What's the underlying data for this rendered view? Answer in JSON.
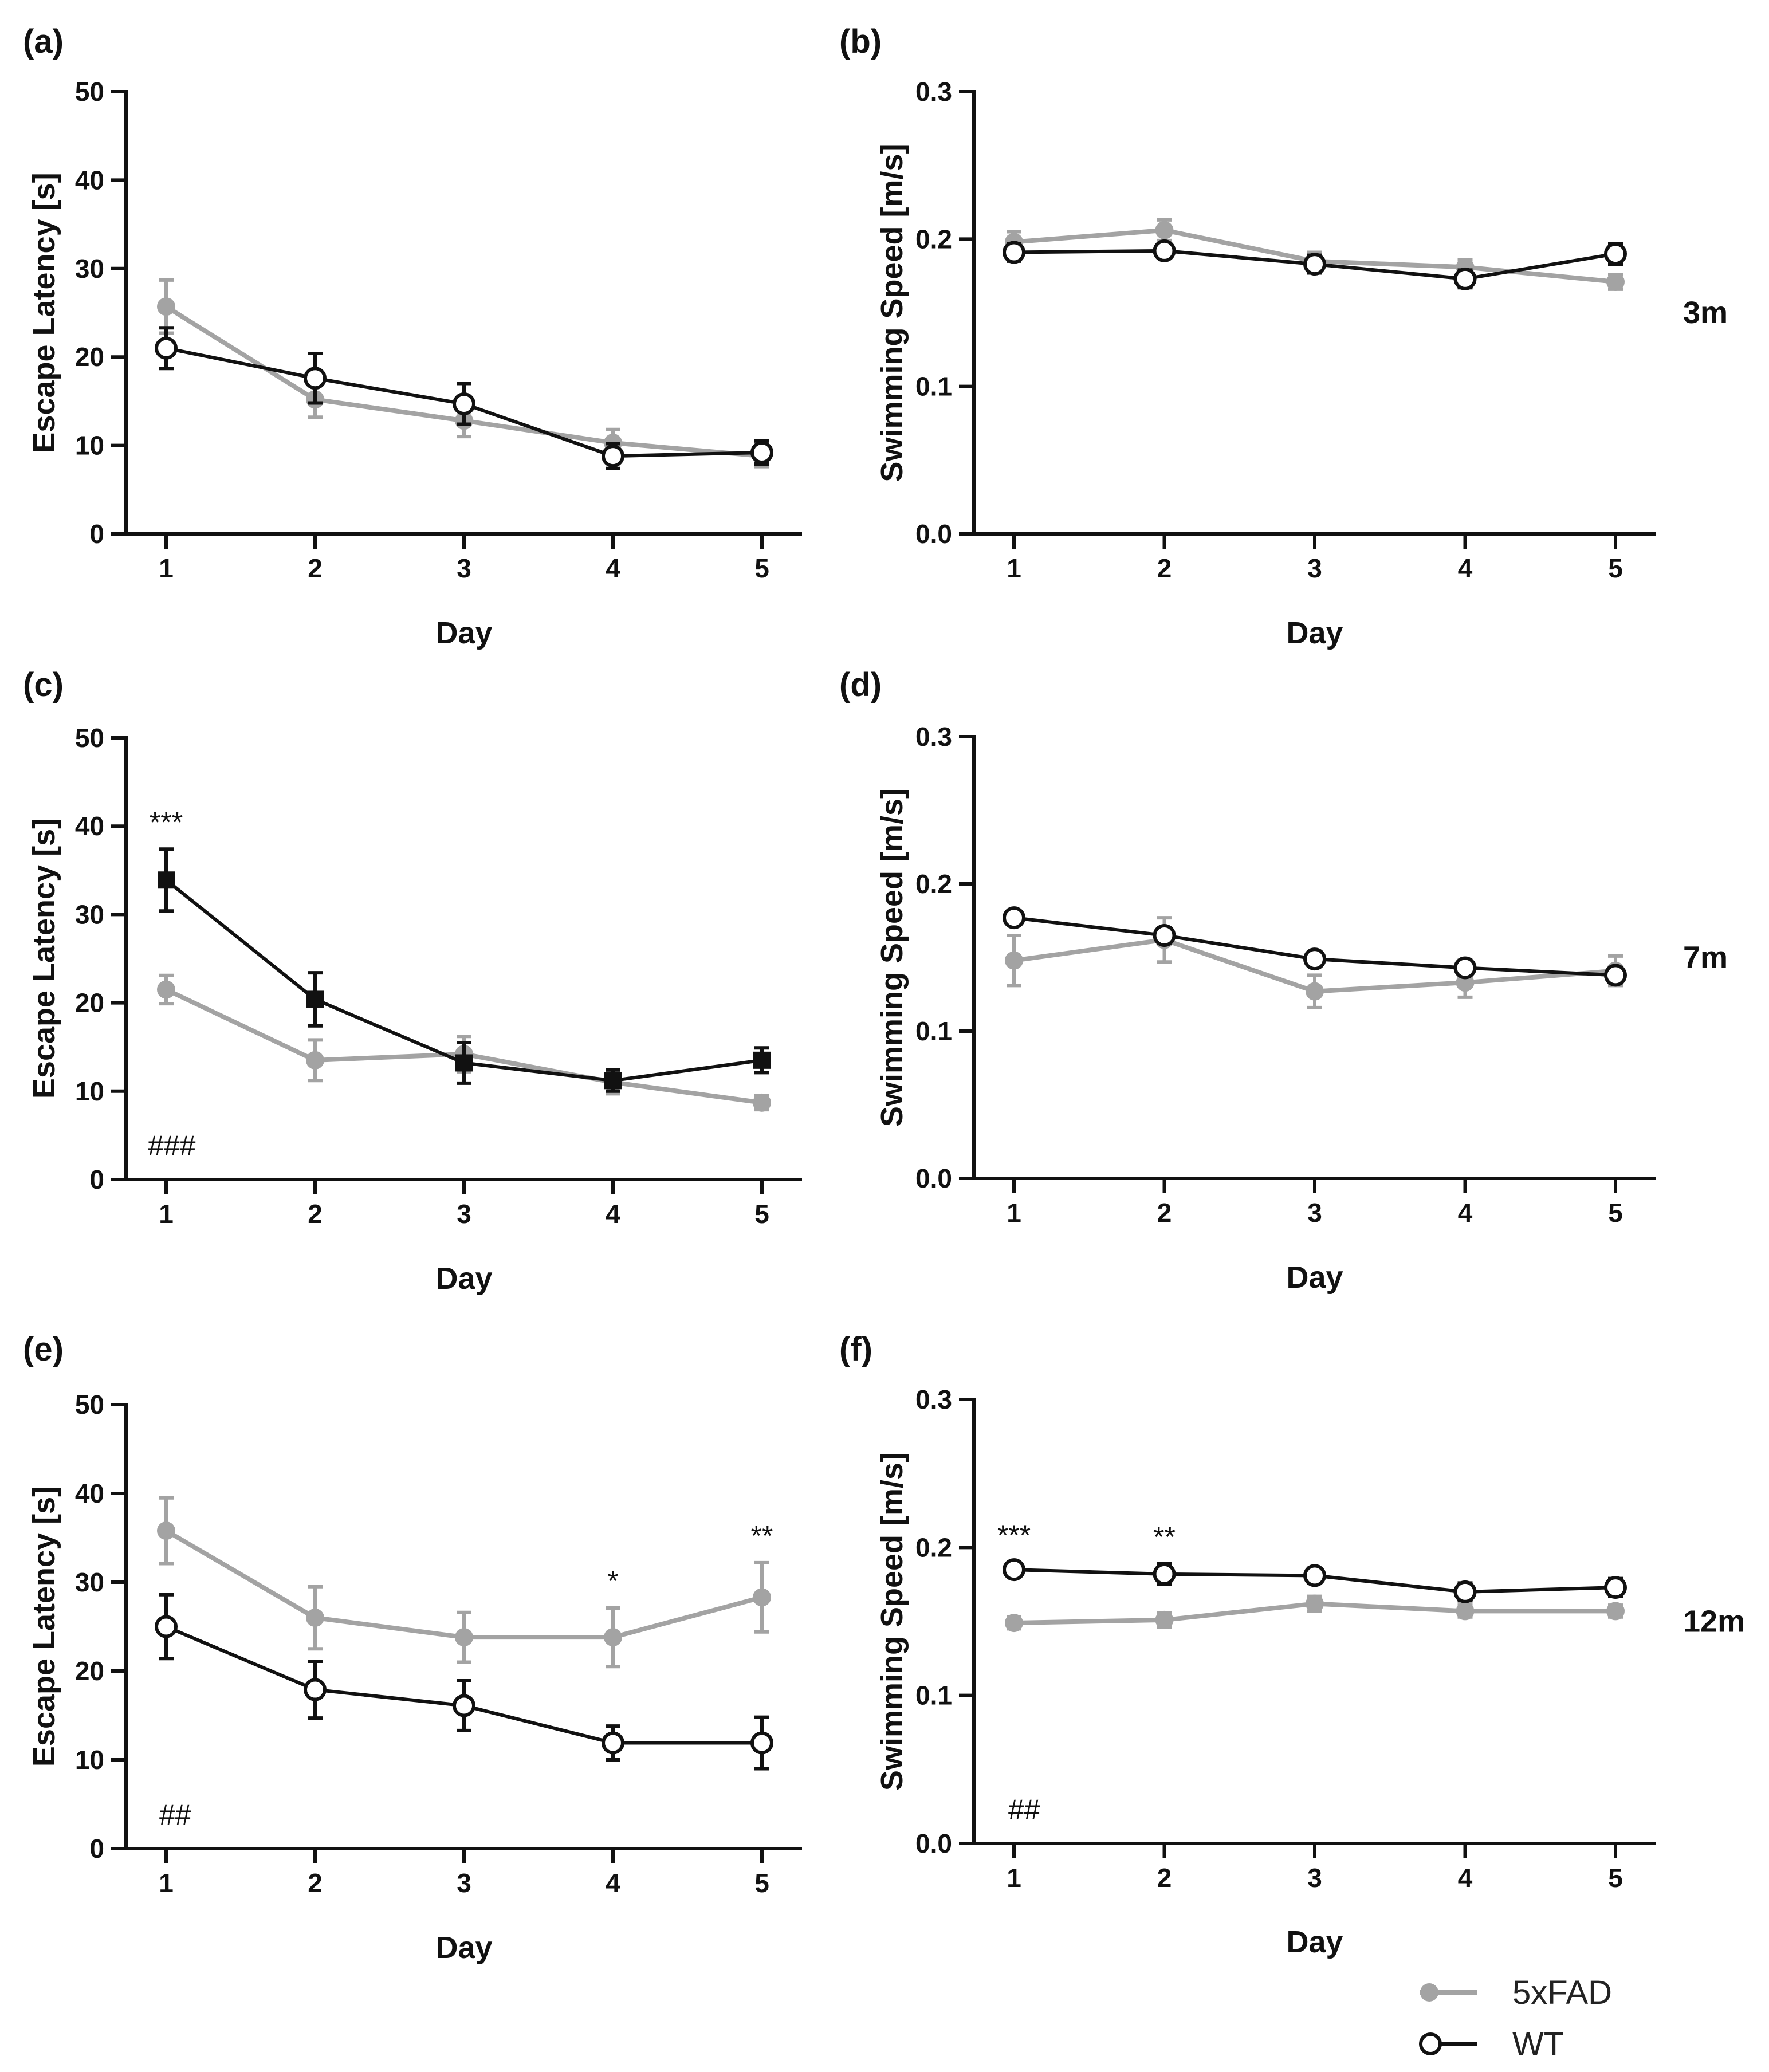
{
  "colors": {
    "fad": "#a3a3a3",
    "wt": "#111111",
    "axis": "#111111"
  },
  "legend": {
    "items": [
      {
        "label": "5xFAD",
        "series": "5xFAD",
        "marker": "filled-circle",
        "color": "#a3a3a3"
      },
      {
        "label": "WT",
        "series": "WT",
        "marker": "open-circle",
        "color": "#111111"
      }
    ]
  },
  "chart_data": [
    {
      "id": "a",
      "panel_label": "(a)",
      "type": "line",
      "xlabel": "Day",
      "ylabel": "Escape Latency [s]",
      "x": [
        1,
        2,
        3,
        4,
        5
      ],
      "ylim": [
        0,
        50
      ],
      "yticks": [
        "0",
        "10",
        "20",
        "30",
        "40",
        "50"
      ],
      "side_label": "",
      "hash_annotation": "",
      "series": [
        {
          "name": "5xFAD",
          "values": [
            25.7,
            15.2,
            12.8,
            10.3,
            8.8
          ],
          "errors": [
            3.0,
            2.0,
            1.8,
            1.5,
            1.2
          ],
          "marker": "filled-circle"
        },
        {
          "name": "WT",
          "values": [
            21.0,
            17.6,
            14.7,
            8.8,
            9.2
          ],
          "errors": [
            2.3,
            2.8,
            2.3,
            1.4,
            1.3
          ],
          "marker": "open-circle"
        }
      ],
      "annotations": []
    },
    {
      "id": "b",
      "panel_label": "(b)",
      "type": "line",
      "xlabel": "Day",
      "ylabel": "Swimming Speed [m/s]",
      "x": [
        1,
        2,
        3,
        4,
        5
      ],
      "ylim": [
        0,
        0.3
      ],
      "yticks": [
        "0.0",
        "0.1",
        "0.2",
        "0.3"
      ],
      "side_label": "3m",
      "hash_annotation": "",
      "series": [
        {
          "name": "5xFAD",
          "values": [
            0.198,
            0.206,
            0.185,
            0.181,
            0.171
          ],
          "errors": [
            0.007,
            0.007,
            0.006,
            0.005,
            0.005
          ],
          "marker": "filled-circle"
        },
        {
          "name": "WT",
          "values": [
            0.191,
            0.192,
            0.183,
            0.173,
            0.19
          ],
          "errors": [
            0.006,
            0.005,
            0.006,
            0.006,
            0.007
          ],
          "marker": "open-circle"
        }
      ],
      "annotations": []
    },
    {
      "id": "c",
      "panel_label": "(c)",
      "type": "line",
      "xlabel": "Day",
      "ylabel": "Escape Latency [s]",
      "x": [
        1,
        2,
        3,
        4,
        5
      ],
      "ylim": [
        0,
        50
      ],
      "yticks": [
        "0",
        "10",
        "20",
        "30",
        "40",
        "50"
      ],
      "side_label": "",
      "hash_annotation": "###",
      "series": [
        {
          "name": "5xFAD",
          "values": [
            21.5,
            13.5,
            14.2,
            11.0,
            8.7
          ],
          "errors": [
            1.6,
            2.3,
            2.0,
            1.3,
            0.8
          ],
          "marker": "filled-circle"
        },
        {
          "name": "WT",
          "values": [
            33.9,
            20.4,
            13.2,
            11.2,
            13.5
          ],
          "errors": [
            3.5,
            3.0,
            2.3,
            1.2,
            1.4
          ],
          "marker": "filled-square"
        }
      ],
      "annotations": [
        {
          "day": 1,
          "text": "***"
        }
      ]
    },
    {
      "id": "d",
      "panel_label": "(d)",
      "type": "line",
      "xlabel": "Day",
      "ylabel": "Swimming Speed [m/s]",
      "x": [
        1,
        2,
        3,
        4,
        5
      ],
      "ylim": [
        0,
        0.3
      ],
      "yticks": [
        "0.0",
        "0.1",
        "0.2",
        "0.3"
      ],
      "side_label": "7m",
      "hash_annotation": "",
      "series": [
        {
          "name": "5xFAD",
          "values": [
            0.148,
            0.162,
            0.127,
            0.133,
            0.141
          ],
          "errors": [
            0.017,
            0.015,
            0.011,
            0.01,
            0.01
          ],
          "marker": "filled-circle"
        },
        {
          "name": "WT",
          "values": [
            0.177,
            0.165,
            0.149,
            0.143,
            0.138
          ],
          "errors": [
            0.004,
            0.005,
            0.005,
            0.005,
            0.005
          ],
          "marker": "open-circle"
        }
      ],
      "annotations": []
    },
    {
      "id": "e",
      "panel_label": "(e)",
      "type": "line",
      "xlabel": "Day",
      "ylabel": "Escape Latency [s]",
      "x": [
        1,
        2,
        3,
        4,
        5
      ],
      "ylim": [
        0,
        50
      ],
      "yticks": [
        "0",
        "10",
        "20",
        "30",
        "40",
        "50"
      ],
      "side_label": "",
      "hash_annotation": "##",
      "series": [
        {
          "name": "5xFAD",
          "values": [
            35.8,
            26.0,
            23.8,
            23.8,
            28.3
          ],
          "errors": [
            3.7,
            3.5,
            2.8,
            3.3,
            3.9
          ],
          "marker": "filled-circle"
        },
        {
          "name": "WT",
          "values": [
            25.0,
            17.9,
            16.1,
            11.9,
            11.9
          ],
          "errors": [
            3.6,
            3.2,
            2.8,
            1.9,
            2.9
          ],
          "marker": "open-circle"
        }
      ],
      "annotations": [
        {
          "day": 4,
          "text": "*"
        },
        {
          "day": 5,
          "text": "**"
        }
      ]
    },
    {
      "id": "f",
      "panel_label": "(f)",
      "type": "line",
      "xlabel": "Day",
      "ylabel": "Swimming Speed [m/s]",
      "x": [
        1,
        2,
        3,
        4,
        5
      ],
      "ylim": [
        0,
        0.3
      ],
      "yticks": [
        "0.0",
        "0.1",
        "0.2",
        "0.3"
      ],
      "side_label": "12m",
      "hash_annotation": "##",
      "series": [
        {
          "name": "5xFAD",
          "values": [
            0.149,
            0.151,
            0.162,
            0.157,
            0.157
          ],
          "errors": [
            0.004,
            0.005,
            0.005,
            0.004,
            0.004
          ],
          "marker": "filled-circle"
        },
        {
          "name": "WT",
          "values": [
            0.185,
            0.182,
            0.181,
            0.17,
            0.173
          ],
          "errors": [
            0.005,
            0.007,
            0.005,
            0.006,
            0.006
          ],
          "marker": "open-circle"
        }
      ],
      "annotations": [
        {
          "day": 1,
          "text": "***"
        },
        {
          "day": 2,
          "text": "**"
        }
      ]
    }
  ]
}
